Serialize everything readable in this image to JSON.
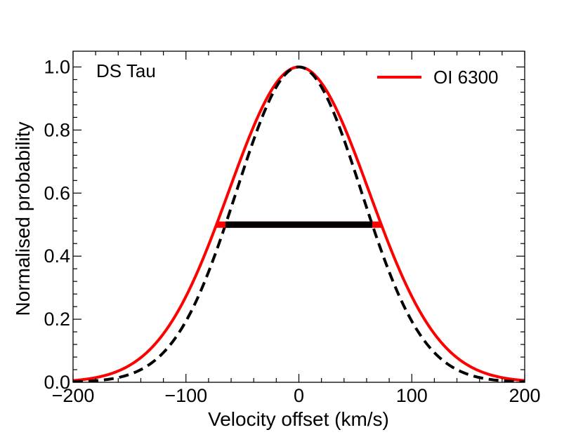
{
  "chart_data": {
    "type": "line",
    "title": "",
    "annotation": "DS Tau",
    "xlabel": "Velocity offset (km/s)",
    "ylabel": "Normalised probability",
    "xlim": [
      -200,
      200
    ],
    "ylim": [
      0.0,
      1.05
    ],
    "x_ticks": [
      -200,
      -100,
      0,
      100,
      200
    ],
    "x_tick_labels": [
      "−200",
      "−100",
      "0",
      "100",
      "200"
    ],
    "y_ticks": [
      0.0,
      0.2,
      0.4,
      0.6,
      0.8,
      1.0
    ],
    "y_tick_labels": [
      "0.0",
      "0.2",
      "0.4",
      "0.6",
      "0.8",
      "1.0"
    ],
    "grid": false,
    "legend_position": "top-right",
    "series": [
      {
        "name": "OI 6300",
        "color": "#ff0000",
        "style": "solid",
        "shape": "gaussian",
        "center": 0,
        "fwhm": 146,
        "peak": 1.0
      },
      {
        "color": "#000000",
        "style": "dashed",
        "shape": "gaussian",
        "center": 0,
        "fwhm": 130,
        "peak": 1.0
      }
    ],
    "fwhm_bars": [
      {
        "x": [
          -73,
          73
        ],
        "y": 0.5,
        "color": "#ff0000"
      },
      {
        "x": [
          -65,
          65
        ],
        "y": 0.5,
        "color": "#000000"
      }
    ]
  }
}
